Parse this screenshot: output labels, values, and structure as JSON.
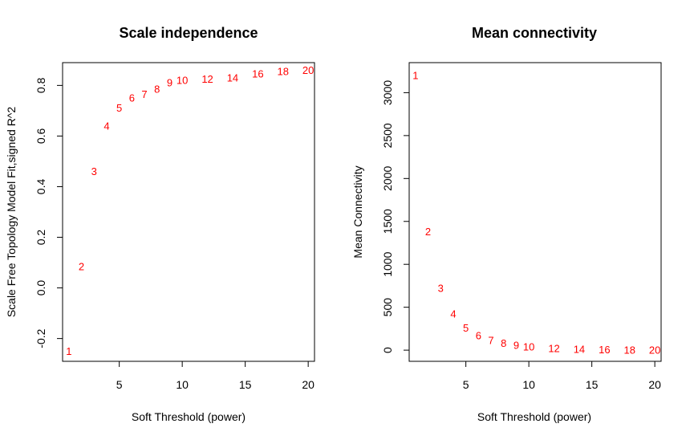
{
  "chart_data": [
    {
      "type": "scatter",
      "marker": "text-labels",
      "title": "Scale independence",
      "xlabel": "Soft Threshold (power)",
      "ylabel": "Scale Free Topology Model Fit,signed R^2",
      "xlim": [
        0.5,
        20.5
      ],
      "ylim": [
        -0.29,
        0.89
      ],
      "xticks": [
        "5",
        "10",
        "15",
        "20"
      ],
      "yticks": [
        "-0.2",
        "0.0",
        "0.2",
        "0.4",
        "0.6",
        "0.8"
      ],
      "point_color": "#FF0000",
      "points": [
        {
          "label": "1",
          "x": 1,
          "y": -0.25
        },
        {
          "label": "2",
          "x": 2,
          "y": 0.085
        },
        {
          "label": "3",
          "x": 3,
          "y": 0.46
        },
        {
          "label": "4",
          "x": 4,
          "y": 0.64
        },
        {
          "label": "5",
          "x": 5,
          "y": 0.71
        },
        {
          "label": "6",
          "x": 6,
          "y": 0.75
        },
        {
          "label": "7",
          "x": 7,
          "y": 0.765
        },
        {
          "label": "8",
          "x": 8,
          "y": 0.785
        },
        {
          "label": "9",
          "x": 9,
          "y": 0.81
        },
        {
          "label": "10",
          "x": 10,
          "y": 0.82
        },
        {
          "label": "12",
          "x": 12,
          "y": 0.825
        },
        {
          "label": "14",
          "x": 14,
          "y": 0.83
        },
        {
          "label": "16",
          "x": 16,
          "y": 0.845
        },
        {
          "label": "18",
          "x": 18,
          "y": 0.855
        },
        {
          "label": "20",
          "x": 20,
          "y": 0.86
        }
      ]
    },
    {
      "type": "scatter",
      "marker": "text-labels",
      "title": "Mean connectivity",
      "xlabel": "Soft Threshold (power)",
      "ylabel": "Mean Connectivity",
      "xlim": [
        0.5,
        20.5
      ],
      "ylim": [
        -130,
        3350
      ],
      "xticks": [
        "5",
        "10",
        "15",
        "20"
      ],
      "yticks": [
        "0",
        "500",
        "1000",
        "1500",
        "2000",
        "2500",
        "3000"
      ],
      "point_color": "#FF0000",
      "points": [
        {
          "label": "1",
          "x": 1,
          "y": 3200
        },
        {
          "label": "2",
          "x": 2,
          "y": 1380
        },
        {
          "label": "3",
          "x": 3,
          "y": 720
        },
        {
          "label": "4",
          "x": 4,
          "y": 420
        },
        {
          "label": "5",
          "x": 5,
          "y": 260
        },
        {
          "label": "6",
          "x": 6,
          "y": 170
        },
        {
          "label": "7",
          "x": 7,
          "y": 115
        },
        {
          "label": "8",
          "x": 8,
          "y": 80
        },
        {
          "label": "9",
          "x": 9,
          "y": 55
        },
        {
          "label": "10",
          "x": 10,
          "y": 40
        },
        {
          "label": "12",
          "x": 12,
          "y": 20
        },
        {
          "label": "14",
          "x": 14,
          "y": 10
        },
        {
          "label": "16",
          "x": 16,
          "y": 5
        },
        {
          "label": "18",
          "x": 18,
          "y": 3
        },
        {
          "label": "20",
          "x": 20,
          "y": 2
        }
      ]
    }
  ]
}
